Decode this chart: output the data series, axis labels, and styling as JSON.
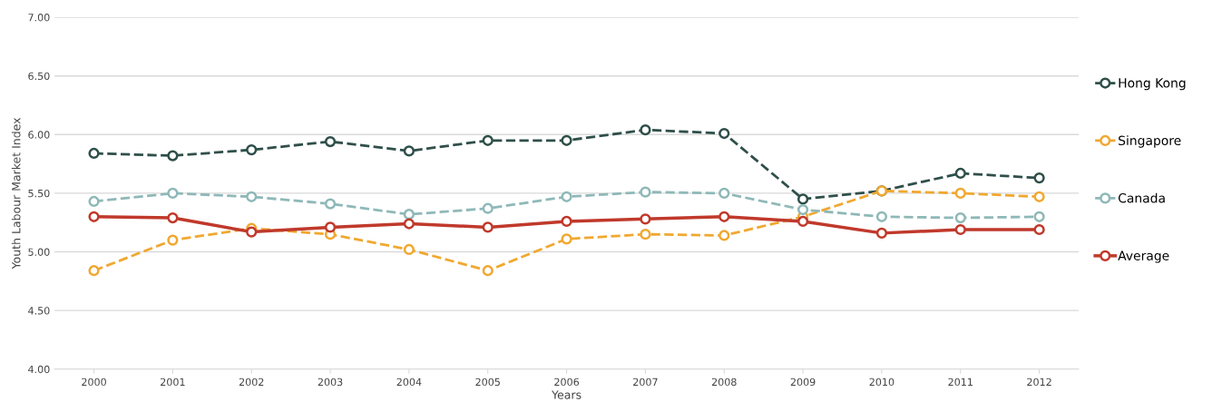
{
  "chart_data": {
    "type": "line",
    "xlabel": "Years",
    "ylabel": "Youth Labour Market Index",
    "categories": [
      "2000",
      "2001",
      "2002",
      "2003",
      "2004",
      "2005",
      "2006",
      "2007",
      "2008",
      "2009",
      "2010",
      "2011",
      "2012"
    ],
    "series": [
      {
        "name": "Hong Kong",
        "color": "#2f4f4a",
        "line_style": "dashed",
        "values": [
          5.84,
          5.82,
          5.87,
          5.94,
          5.86,
          5.95,
          5.95,
          6.04,
          6.01,
          5.45,
          5.52,
          5.67,
          5.63
        ]
      },
      {
        "name": "Singapore",
        "color": "#f0a830",
        "line_style": "dashed",
        "values": [
          4.84,
          5.1,
          5.2,
          5.15,
          5.02,
          4.84,
          5.11,
          5.15,
          5.14,
          5.3,
          5.52,
          5.5,
          5.47
        ]
      },
      {
        "name": "Canada",
        "color": "#8fb8b8",
        "line_style": "dashed",
        "values": [
          5.43,
          5.5,
          5.47,
          5.41,
          5.32,
          5.37,
          5.47,
          5.51,
          5.5,
          5.36,
          5.3,
          5.29,
          5.3
        ]
      },
      {
        "name": "Average",
        "color": "#c0392b",
        "line_style": "solid",
        "values": [
          5.3,
          5.29,
          5.17,
          5.21,
          5.24,
          5.21,
          5.26,
          5.28,
          5.3,
          5.26,
          5.16,
          5.19,
          5.19
        ]
      }
    ],
    "ylim": [
      4.0,
      7.0
    ],
    "yticks": [
      {
        "value": 4.0,
        "label": "4.00"
      },
      {
        "value": 4.5,
        "label": "4.50"
      },
      {
        "value": 5.0,
        "label": "5.00"
      },
      {
        "value": 5.5,
        "label": "5.50"
      },
      {
        "value": 6.0,
        "label": "6.00"
      },
      {
        "value": 6.5,
        "label": "6.50"
      },
      {
        "value": 7.0,
        "label": "7.00"
      }
    ],
    "grid": "y",
    "legend": "right",
    "marker": "circle"
  }
}
